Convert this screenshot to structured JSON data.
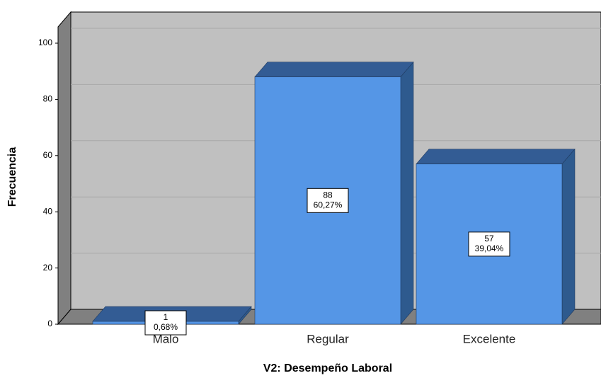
{
  "chart_data": {
    "type": "bar3d",
    "categories": [
      "Malo",
      "Regular",
      "Excelente"
    ],
    "values": [
      1,
      88,
      57
    ],
    "percent_labels": [
      "0,68%",
      "60,27%",
      "39,04%"
    ],
    "color": "#5596e6",
    "xlabel": "V2: Desempeño Laboral",
    "ylabel": "Frecuencia",
    "ylim": [
      0,
      100
    ],
    "yticks": [
      0,
      20,
      40,
      60,
      80,
      100
    ],
    "grid": true
  }
}
